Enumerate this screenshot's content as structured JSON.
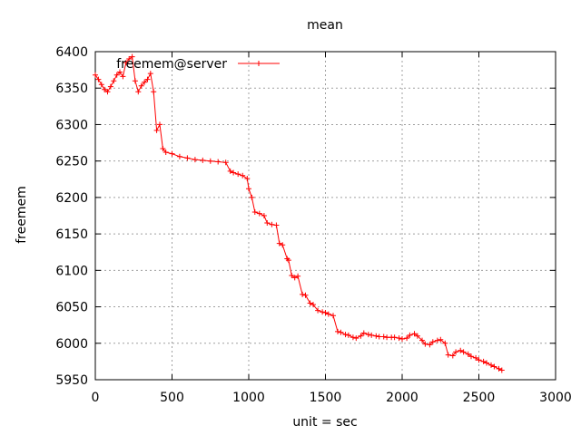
{
  "chart_data": {
    "type": "line",
    "title": "mean",
    "xlabel": "unit = sec",
    "ylabel": "freemem",
    "xlim": [
      0,
      3000
    ],
    "ylim": [
      5950,
      6400
    ],
    "x_ticks": [
      0,
      500,
      1000,
      1500,
      2000,
      2500,
      3000
    ],
    "y_ticks": [
      5950,
      6000,
      6050,
      6100,
      6150,
      6200,
      6250,
      6300,
      6350,
      6400
    ],
    "x_tick_labels": [
      "0",
      "500",
      "1000",
      "1500",
      "2000",
      "2500",
      "3000"
    ],
    "y_tick_labels": [
      "5950",
      "6000",
      "6050",
      "6100",
      "6150",
      "6200",
      "6250",
      "6300",
      "6350",
      "6400"
    ],
    "grid": true,
    "legend_position": "top-left",
    "series": [
      {
        "name": "freemem@server",
        "color": "#ff0000",
        "marker": "plus",
        "x": [
          0,
          20,
          40,
          60,
          80,
          100,
          120,
          140,
          160,
          180,
          200,
          220,
          240,
          260,
          280,
          300,
          320,
          340,
          360,
          380,
          400,
          420,
          440,
          460,
          500,
          550,
          600,
          650,
          700,
          750,
          800,
          850,
          880,
          900,
          930,
          960,
          990,
          1000,
          1020,
          1040,
          1070,
          1100,
          1120,
          1150,
          1180,
          1200,
          1220,
          1250,
          1260,
          1280,
          1300,
          1320,
          1350,
          1370,
          1400,
          1420,
          1450,
          1480,
          1500,
          1520,
          1550,
          1580,
          1600,
          1630,
          1650,
          1680,
          1700,
          1730,
          1750,
          1780,
          1800,
          1830,
          1850,
          1880,
          1900,
          1930,
          1950,
          1980,
          2000,
          2030,
          2050,
          2080,
          2100,
          2130,
          2150,
          2180,
          2200,
          2230,
          2250,
          2280,
          2300,
          2330,
          2350,
          2380,
          2400,
          2430,
          2450,
          2480,
          2500,
          2530,
          2550,
          2580,
          2600,
          2630,
          2650
        ],
        "y": [
          6368,
          6362,
          6355,
          6348,
          6345,
          6352,
          6360,
          6368,
          6372,
          6366,
          6385,
          6390,
          6393,
          6360,
          6345,
          6353,
          6358,
          6362,
          6370,
          6345,
          6292,
          6300,
          6267,
          6262,
          6260,
          6256,
          6254,
          6252,
          6251,
          6250,
          6249,
          6248,
          6236,
          6234,
          6232,
          6230,
          6226,
          6212,
          6200,
          6180,
          6178,
          6175,
          6165,
          6163,
          6162,
          6137,
          6135,
          6116,
          6114,
          6093,
          6090,
          6092,
          6067,
          6066,
          6055,
          6053,
          6045,
          6043,
          6042,
          6040,
          6038,
          6016,
          6015,
          6012,
          6011,
          6008,
          6007,
          6010,
          6014,
          6012,
          6011,
          6010,
          6009,
          6009,
          6008,
          6008,
          6008,
          6007,
          6006,
          6007,
          6011,
          6013,
          6010,
          6004,
          5999,
          5998,
          6002,
          6004,
          6005,
          6000,
          5984,
          5983,
          5988,
          5990,
          5988,
          5985,
          5982,
          5980,
          5977,
          5975,
          5973,
          5970,
          5968,
          5965,
          5963
        ]
      }
    ]
  }
}
